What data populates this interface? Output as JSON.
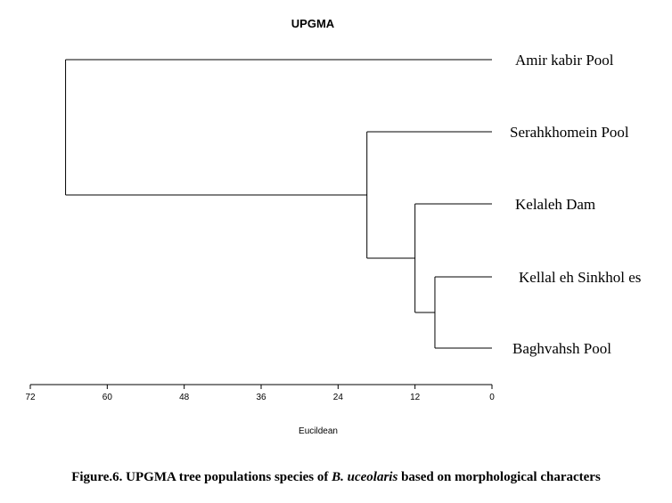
{
  "chart_data": {
    "type": "dendrogram",
    "title": "UPGMA",
    "xlabel": "Eucildean",
    "xticks": [
      72,
      60,
      48,
      36,
      24,
      12,
      0
    ],
    "xlim": [
      72,
      0
    ],
    "leaves": [
      "Amir kabir Pool",
      "Serahkhomein Pool",
      "Kelaleh Dam",
      "Kellal eh Sinkhol es",
      "Baghvahsh Pool"
    ],
    "merges": [
      {
        "left": 3,
        "right": 4,
        "height": 8.9
      },
      {
        "left": 2,
        "right": "m0",
        "height": 12.0
      },
      {
        "left": 1,
        "right": "m1",
        "height": 19.5
      },
      {
        "left": 0,
        "right": "m2",
        "height": 66.5
      }
    ],
    "line_color": "#000000"
  },
  "caption": {
    "prefix": "Figure.6. UPGMA tree populations species of ",
    "species": "B. uceolaris",
    "suffix": " based on morphological characters"
  }
}
